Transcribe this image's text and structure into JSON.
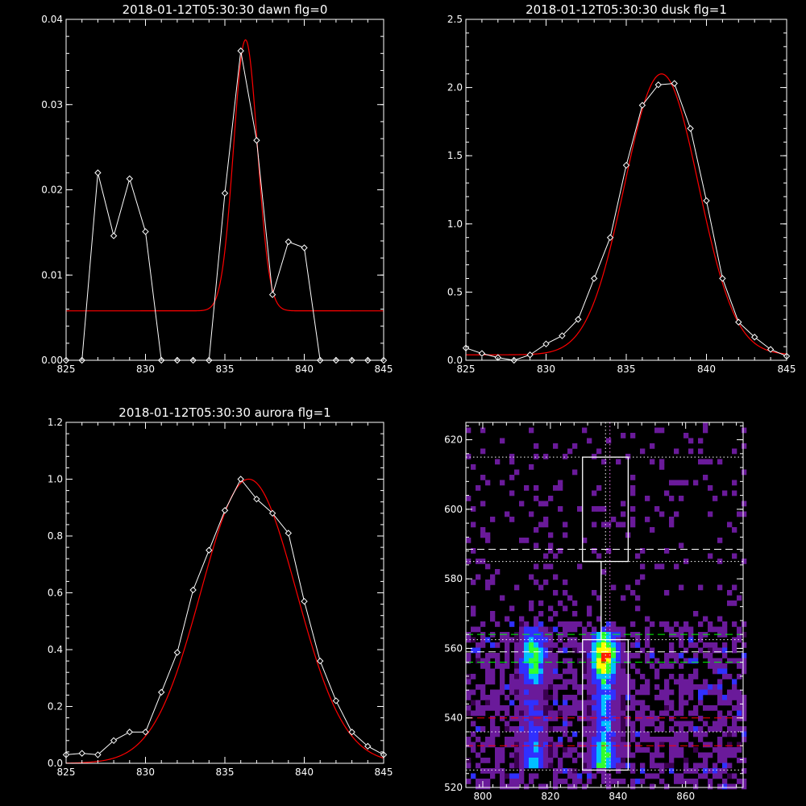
{
  "chart_data": [
    {
      "type": "line",
      "title": "2018-01-12T05:30:30 dawn flg=0",
      "xlim": [
        825,
        845
      ],
      "ylim": [
        0,
        0.04
      ],
      "xticks": [
        825,
        830,
        835,
        840,
        845
      ],
      "yticks": [
        0.0,
        0.01,
        0.02,
        0.03,
        0.04
      ],
      "ytick_labels": [
        "0.00",
        "0.01",
        "0.02",
        "0.03",
        "0.04"
      ],
      "series": [
        {
          "color": "#ffffff",
          "marker": "diamond",
          "x": [
            825,
            826,
            827,
            828,
            829,
            830,
            831,
            832,
            833,
            834,
            835,
            836,
            837,
            838,
            839,
            840,
            841,
            842,
            843,
            844,
            845
          ],
          "y": [
            0,
            0,
            0.022,
            0.0146,
            0.0213,
            0.0151,
            0,
            0,
            0,
            0,
            0.0196,
            0.0363,
            0.0258,
            0.0077,
            0.0139,
            0.0132,
            0,
            0,
            0,
            0,
            0
          ]
        },
        {
          "color": "#ff0000",
          "model": "gaussian",
          "center": 836.3,
          "sigma": 0.75,
          "amplitude": 0.0318,
          "baseline": 0.0058
        }
      ]
    },
    {
      "type": "line",
      "title": "2018-01-12T05:30:30 dusk flg=1",
      "xlim": [
        825,
        845
      ],
      "ylim": [
        0,
        2.5
      ],
      "xticks": [
        825,
        830,
        835,
        840,
        845
      ],
      "yticks": [
        0.0,
        0.5,
        1.0,
        1.5,
        2.0,
        2.5
      ],
      "ytick_labels": [
        "0.0",
        "0.5",
        "1.0",
        "1.5",
        "2.0",
        "2.5"
      ],
      "series": [
        {
          "color": "#ffffff",
          "marker": "diamond",
          "x": [
            825,
            826,
            827,
            828,
            829,
            830,
            831,
            832,
            833,
            834,
            835,
            836,
            837,
            838,
            839,
            840,
            841,
            842,
            843,
            844,
            845
          ],
          "y": [
            0.09,
            0.05,
            0.02,
            0.0,
            0.04,
            0.12,
            0.18,
            0.3,
            0.6,
            0.9,
            1.43,
            1.87,
            2.02,
            2.03,
            1.7,
            1.17,
            0.6,
            0.28,
            0.17,
            0.08,
            0.03
          ]
        },
        {
          "color": "#ff0000",
          "model": "gaussian",
          "center": 837.2,
          "sigma": 2.3,
          "amplitude": 2.06,
          "baseline": 0.04
        }
      ]
    },
    {
      "type": "line",
      "title": "2018-01-12T05:30:30 aurora flg=1",
      "xlim": [
        825,
        845
      ],
      "ylim": [
        0,
        1.2
      ],
      "xticks": [
        825,
        830,
        835,
        840,
        845
      ],
      "yticks": [
        0.0,
        0.2,
        0.4,
        0.6,
        0.8,
        1.0,
        1.2
      ],
      "ytick_labels": [
        "0.0",
        "0.2",
        "0.4",
        "0.6",
        "0.8",
        "1.0",
        "1.2"
      ],
      "series": [
        {
          "color": "#ffffff",
          "marker": "diamond",
          "x": [
            825,
            826,
            827,
            828,
            829,
            830,
            831,
            832,
            833,
            834,
            835,
            836,
            837,
            838,
            839,
            840,
            841,
            842,
            843,
            844,
            845
          ],
          "y": [
            0.03,
            0.035,
            0.03,
            0.08,
            0.11,
            0.11,
            0.25,
            0.39,
            0.61,
            0.75,
            0.89,
            1.0,
            0.93,
            0.88,
            0.81,
            0.57,
            0.36,
            0.22,
            0.11,
            0.06,
            0.03
          ]
        },
        {
          "color": "#ff0000",
          "model": "gaussian",
          "center": 836.5,
          "sigma": 3.0,
          "amplitude": 1.0,
          "baseline": 0.0
        }
      ]
    },
    {
      "type": "heatmap",
      "title": "",
      "xlim": [
        795,
        877
      ],
      "ylim": [
        520,
        625
      ],
      "xticks": [
        800,
        820,
        840,
        860
      ],
      "yticks": [
        520,
        540,
        560,
        580,
        600,
        620
      ],
      "colormap": [
        "#000000",
        "#3a0050",
        "#6a1a9a",
        "#3030ff",
        "#00c0ff",
        "#30ff30",
        "#ffff00",
        "#ff2000"
      ],
      "emission_bands": [
        {
          "x_center": 815,
          "x_width": 5,
          "y_range": [
            525,
            564
          ],
          "peak_y": 557,
          "intensity": 0.75
        },
        {
          "x_center": 836,
          "x_width": 5,
          "y_range": [
            525,
            563
          ],
          "peak_y": 558,
          "intensity": 1.0
        }
      ],
      "boxes": [
        {
          "x": [
            829.5,
            843
          ],
          "y": [
            525,
            562.5
          ],
          "color": "#ffffff"
        },
        {
          "x": [
            829.5,
            843
          ],
          "y": [
            585,
            615
          ],
          "color": "#ffffff"
        }
      ],
      "box_connector": {
        "x": 835,
        "y": [
          562.5,
          585
        ],
        "color": "#ffffff"
      },
      "hlines": [
        {
          "y": 615,
          "color": "#ffffff",
          "style": "dotted"
        },
        {
          "y": 588.5,
          "color": "#ffffff",
          "style": "dashed"
        },
        {
          "y": 585,
          "color": "#ffffff",
          "style": "dotted"
        },
        {
          "y": 564,
          "color": "#00ff00",
          "style": "dashed"
        },
        {
          "y": 562.5,
          "color": "#ffffff",
          "style": "dotted"
        },
        {
          "y": 559,
          "color": "#ffffff",
          "style": "dashed"
        },
        {
          "y": 556,
          "color": "#00ff00",
          "style": "dashed"
        },
        {
          "y": 540,
          "color": "#ff0000",
          "style": "dashed"
        },
        {
          "y": 536,
          "color": "#ffffff",
          "style": "dotted"
        },
        {
          "y": 532,
          "color": "#ff0000",
          "style": "dashed"
        },
        {
          "y": 525,
          "color": "#ffffff",
          "style": "dotted"
        }
      ],
      "vlines": [
        {
          "x": 836.3,
          "color": "#ffffff",
          "style": "dotted"
        },
        {
          "x": 837.6,
          "color": "#ff80ff",
          "style": "dotted"
        }
      ]
    }
  ]
}
